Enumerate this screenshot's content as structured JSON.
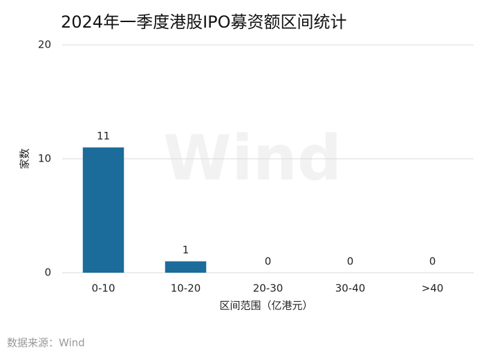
{
  "chart_data": {
    "type": "bar",
    "title": "2024年一季度港股IPO募资额区间统计",
    "y_label": "家数",
    "x_label": "区间范围（亿港元）",
    "categories": [
      "0-10",
      "10-20",
      "20-30",
      "30-40",
      ">40"
    ],
    "values": [
      11,
      1,
      0,
      0,
      0
    ],
    "color": "#1b6c9a",
    "ylim": [
      0,
      20
    ],
    "yticks": [
      0,
      10,
      20
    ],
    "grid": true,
    "source": "数据来源：Wind",
    "watermark": "Wind"
  }
}
